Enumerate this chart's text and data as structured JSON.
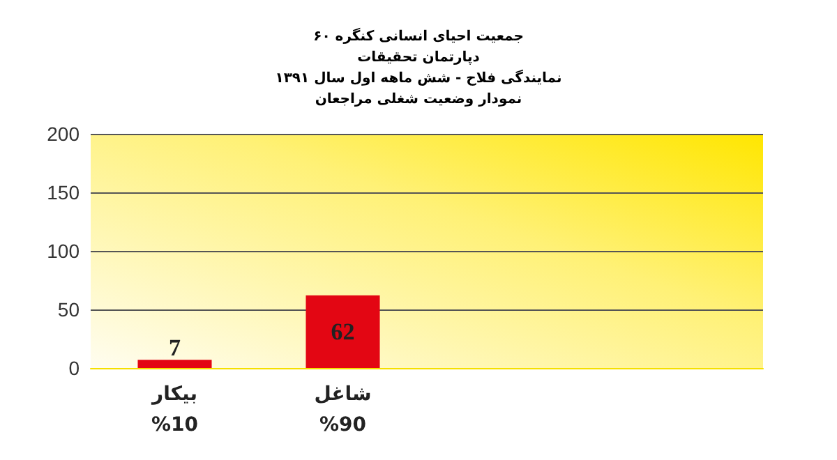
{
  "chart_data": {
    "type": "bar",
    "title": "جمعیت احیای انسانی کنگره ۶۰\nدپارتمان تحقیقات\nنمایندگی فلاح - شش ماهه اول سال ۱۳۹۱\nنمودار وضعیت شغلی مراجعان",
    "categories": [
      "بیکار\n%10",
      "شاغل\n%90",
      null,
      null
    ],
    "values": [
      7,
      62,
      null,
      null
    ],
    "color": "#e30613",
    "ylim": [
      0,
      200
    ],
    "yticks": [
      0,
      50,
      100,
      150,
      200
    ],
    "grid": "y",
    "data_labels": true
  }
}
